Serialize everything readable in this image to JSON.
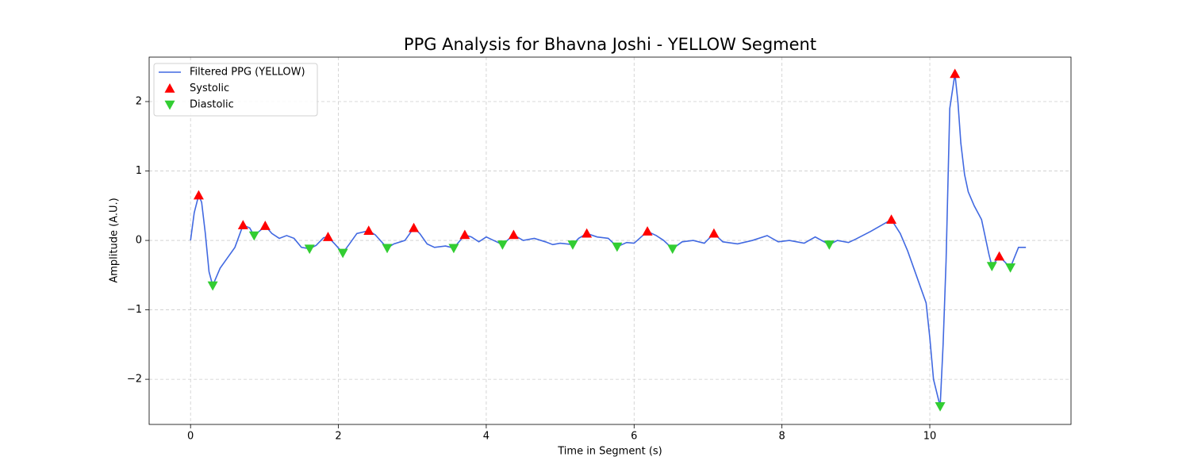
{
  "chart_data": {
    "type": "line",
    "title": "PPG Analysis for Bhavna Joshi - YELLOW Segment",
    "xlabel": "Time in Segment (s)",
    "ylabel": "Amplitude (A.U.)",
    "xlim": [
      -0.56,
      11.91
    ],
    "ylim": [
      -2.65,
      2.64
    ],
    "xticks": [
      0,
      2,
      4,
      6,
      8,
      10
    ],
    "yticks": [
      {
        "value": -2,
        "label": "−2"
      },
      {
        "value": -1,
        "label": "−1"
      },
      0,
      1,
      2
    ],
    "grid": true,
    "legend": "upper left",
    "series": [
      {
        "name": "Filtered PPG (YELLOW)",
        "color": "#4169e1",
        "marker": "none",
        "x": [
          0,
          0.05,
          0.11,
          0.15,
          0.2,
          0.25,
          0.3,
          0.4,
          0.5,
          0.6,
          0.71,
          0.8,
          0.86,
          0.95,
          1.01,
          1.1,
          1.2,
          1.3,
          1.4,
          1.5,
          1.61,
          1.7,
          1.8,
          1.86,
          1.95,
          2.06,
          2.15,
          2.25,
          2.41,
          2.5,
          2.66,
          2.75,
          2.9,
          3.02,
          3.1,
          3.2,
          3.3,
          3.45,
          3.56,
          3.71,
          3.8,
          3.9,
          4.0,
          4.1,
          4.22,
          4.37,
          4.5,
          4.65,
          4.8,
          4.9,
          5.0,
          5.17,
          5.25,
          5.36,
          5.5,
          5.65,
          5.77,
          5.9,
          6.0,
          6.18,
          6.3,
          6.4,
          6.52,
          6.65,
          6.8,
          6.95,
          7.08,
          7.2,
          7.4,
          7.6,
          7.8,
          7.95,
          8.1,
          8.3,
          8.45,
          8.64,
          8.75,
          8.9,
          9.0,
          9.2,
          9.48,
          9.6,
          9.7,
          9.85,
          9.95,
          10.0,
          10.05,
          10.14,
          10.18,
          10.22,
          10.27,
          10.34,
          10.38,
          10.42,
          10.47,
          10.52,
          10.6,
          10.7,
          10.8,
          10.84,
          10.94,
          11.09,
          11.2,
          11.3
        ],
        "values": [
          0,
          0.4,
          0.65,
          0.55,
          0.1,
          -0.45,
          -0.65,
          -0.4,
          -0.25,
          -0.1,
          0.22,
          0.18,
          0.07,
          0.15,
          0.21,
          0.1,
          0.03,
          0.07,
          0.03,
          -0.1,
          -0.12,
          -0.07,
          0.04,
          0.05,
          -0.05,
          -0.18,
          -0.05,
          0.1,
          0.14,
          0.08,
          -0.11,
          -0.05,
          0.0,
          0.18,
          0.1,
          -0.05,
          -0.1,
          -0.08,
          -0.11,
          0.08,
          0.05,
          -0.02,
          0.05,
          0.0,
          -0.06,
          0.08,
          0.0,
          0.03,
          -0.02,
          -0.06,
          -0.04,
          -0.06,
          0.03,
          0.1,
          0.05,
          0.03,
          -0.09,
          -0.03,
          -0.04,
          0.13,
          0.07,
          0.0,
          -0.12,
          -0.02,
          0.0,
          -0.04,
          0.1,
          -0.02,
          -0.05,
          0.0,
          0.07,
          -0.02,
          0.0,
          -0.04,
          0.05,
          -0.06,
          0.0,
          -0.03,
          0.02,
          0.13,
          0.3,
          0.1,
          -0.15,
          -0.6,
          -0.9,
          -1.4,
          -2.0,
          -2.39,
          -1.5,
          -0.3,
          1.9,
          2.4,
          2.0,
          1.4,
          0.95,
          0.7,
          0.5,
          0.3,
          -0.2,
          -0.37,
          -0.23,
          -0.39,
          -0.1,
          -0.1
        ]
      },
      {
        "name": "Systolic",
        "color": "#ff0000",
        "marker": "^",
        "x": [
          0.11,
          0.71,
          1.01,
          1.86,
          2.41,
          3.02,
          3.71,
          4.37,
          5.36,
          6.18,
          7.08,
          9.48,
          10.34,
          10.94
        ],
        "values": [
          0.65,
          0.22,
          0.21,
          0.05,
          0.14,
          0.18,
          0.08,
          0.08,
          0.1,
          0.13,
          0.1,
          0.3,
          2.4,
          -0.23
        ]
      },
      {
        "name": "Diastolic",
        "color": "#32cd32",
        "marker": "v",
        "x": [
          0.3,
          0.86,
          1.61,
          2.06,
          2.66,
          3.56,
          4.22,
          5.17,
          5.77,
          6.52,
          8.64,
          10.14,
          10.84,
          11.09
        ],
        "values": [
          -0.65,
          0.07,
          -0.12,
          -0.18,
          -0.11,
          -0.11,
          -0.06,
          -0.06,
          -0.09,
          -0.12,
          -0.06,
          -2.39,
          -0.37,
          -0.39
        ]
      }
    ]
  }
}
